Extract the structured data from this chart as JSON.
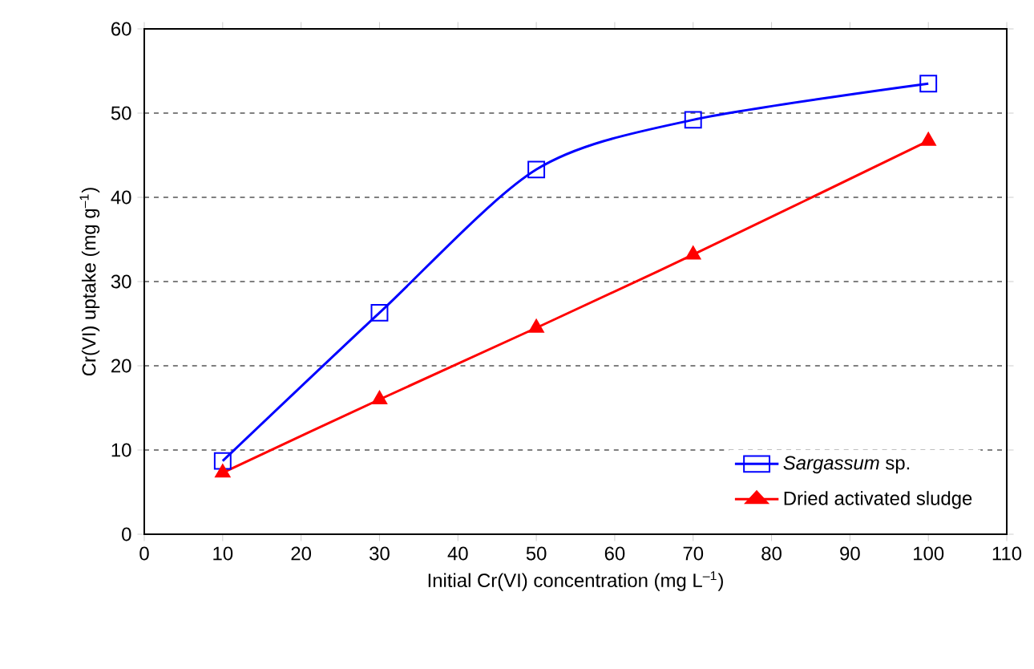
{
  "chart_data": {
    "type": "line",
    "xlabel": "Initial Cr(VI) concentration (mg L$^{–1}$)",
    "ylabel": "Cr(VI) uptake (mg g$^{–1}$)",
    "x": [
      10,
      30,
      50,
      70,
      100
    ],
    "series": [
      {
        "name": "*Sargassum* sp.",
        "color": "#0000ff",
        "marker": "square",
        "values": [
          8.7,
          26.3,
          43.3,
          49.2,
          53.5
        ]
      },
      {
        "name": "Dried activated sludge",
        "color": "#ff0000",
        "marker": "triangle",
        "values": [
          7.3,
          16.0,
          24.5,
          33.2,
          46.7
        ]
      }
    ],
    "xlim": [
      0,
      110
    ],
    "xticks": [
      0,
      10,
      20,
      30,
      40,
      50,
      60,
      70,
      80,
      90,
      100,
      110
    ],
    "ylim": [
      0,
      60
    ],
    "yticks": [
      0,
      10,
      20,
      30,
      40,
      50,
      60
    ],
    "grid": "y",
    "legend": "bottom right"
  }
}
